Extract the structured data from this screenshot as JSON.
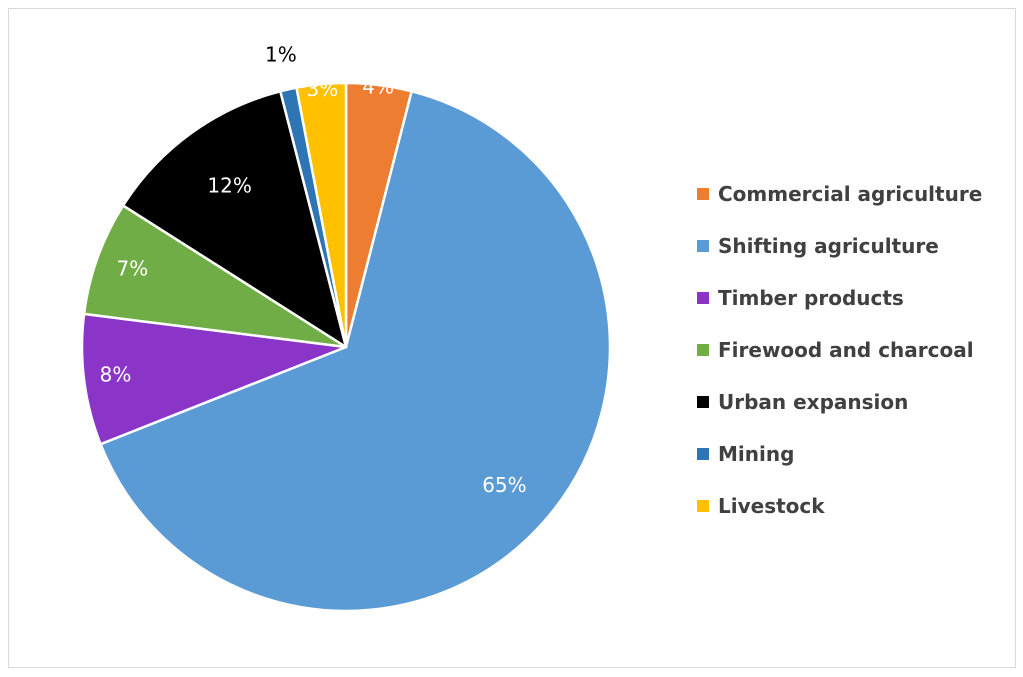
{
  "chart_data": {
    "type": "pie",
    "title": "",
    "legend_position": "right",
    "slices": [
      {
        "label": "Commercial agriculture",
        "value": 4,
        "display": "4%",
        "color": "#ED7D31",
        "label_color": "#FFFFFF"
      },
      {
        "label": "Shifting agriculture",
        "value": 65,
        "display": "65%",
        "color": "#5B9BD5",
        "label_color": "#FFFFFF"
      },
      {
        "label": "Timber products",
        "value": 8,
        "display": "8%",
        "color": "#8B35C8",
        "label_color": "#FFFFFF"
      },
      {
        "label": "Firewood and charcoal",
        "value": 7,
        "display": "7%",
        "color": "#70AD47",
        "label_color": "#FFFFFF"
      },
      {
        "label": "Urban expansion",
        "value": 12,
        "display": "12%",
        "color": "#000000",
        "label_color": "#FFFFFF"
      },
      {
        "label": "Mining",
        "value": 1,
        "display": "1%",
        "color": "#2E75B6",
        "label_color": "#000000"
      },
      {
        "label": "Livestock",
        "value": 3,
        "display": "3%",
        "color": "#FFC000",
        "label_color": "#FFFFFF"
      }
    ]
  }
}
